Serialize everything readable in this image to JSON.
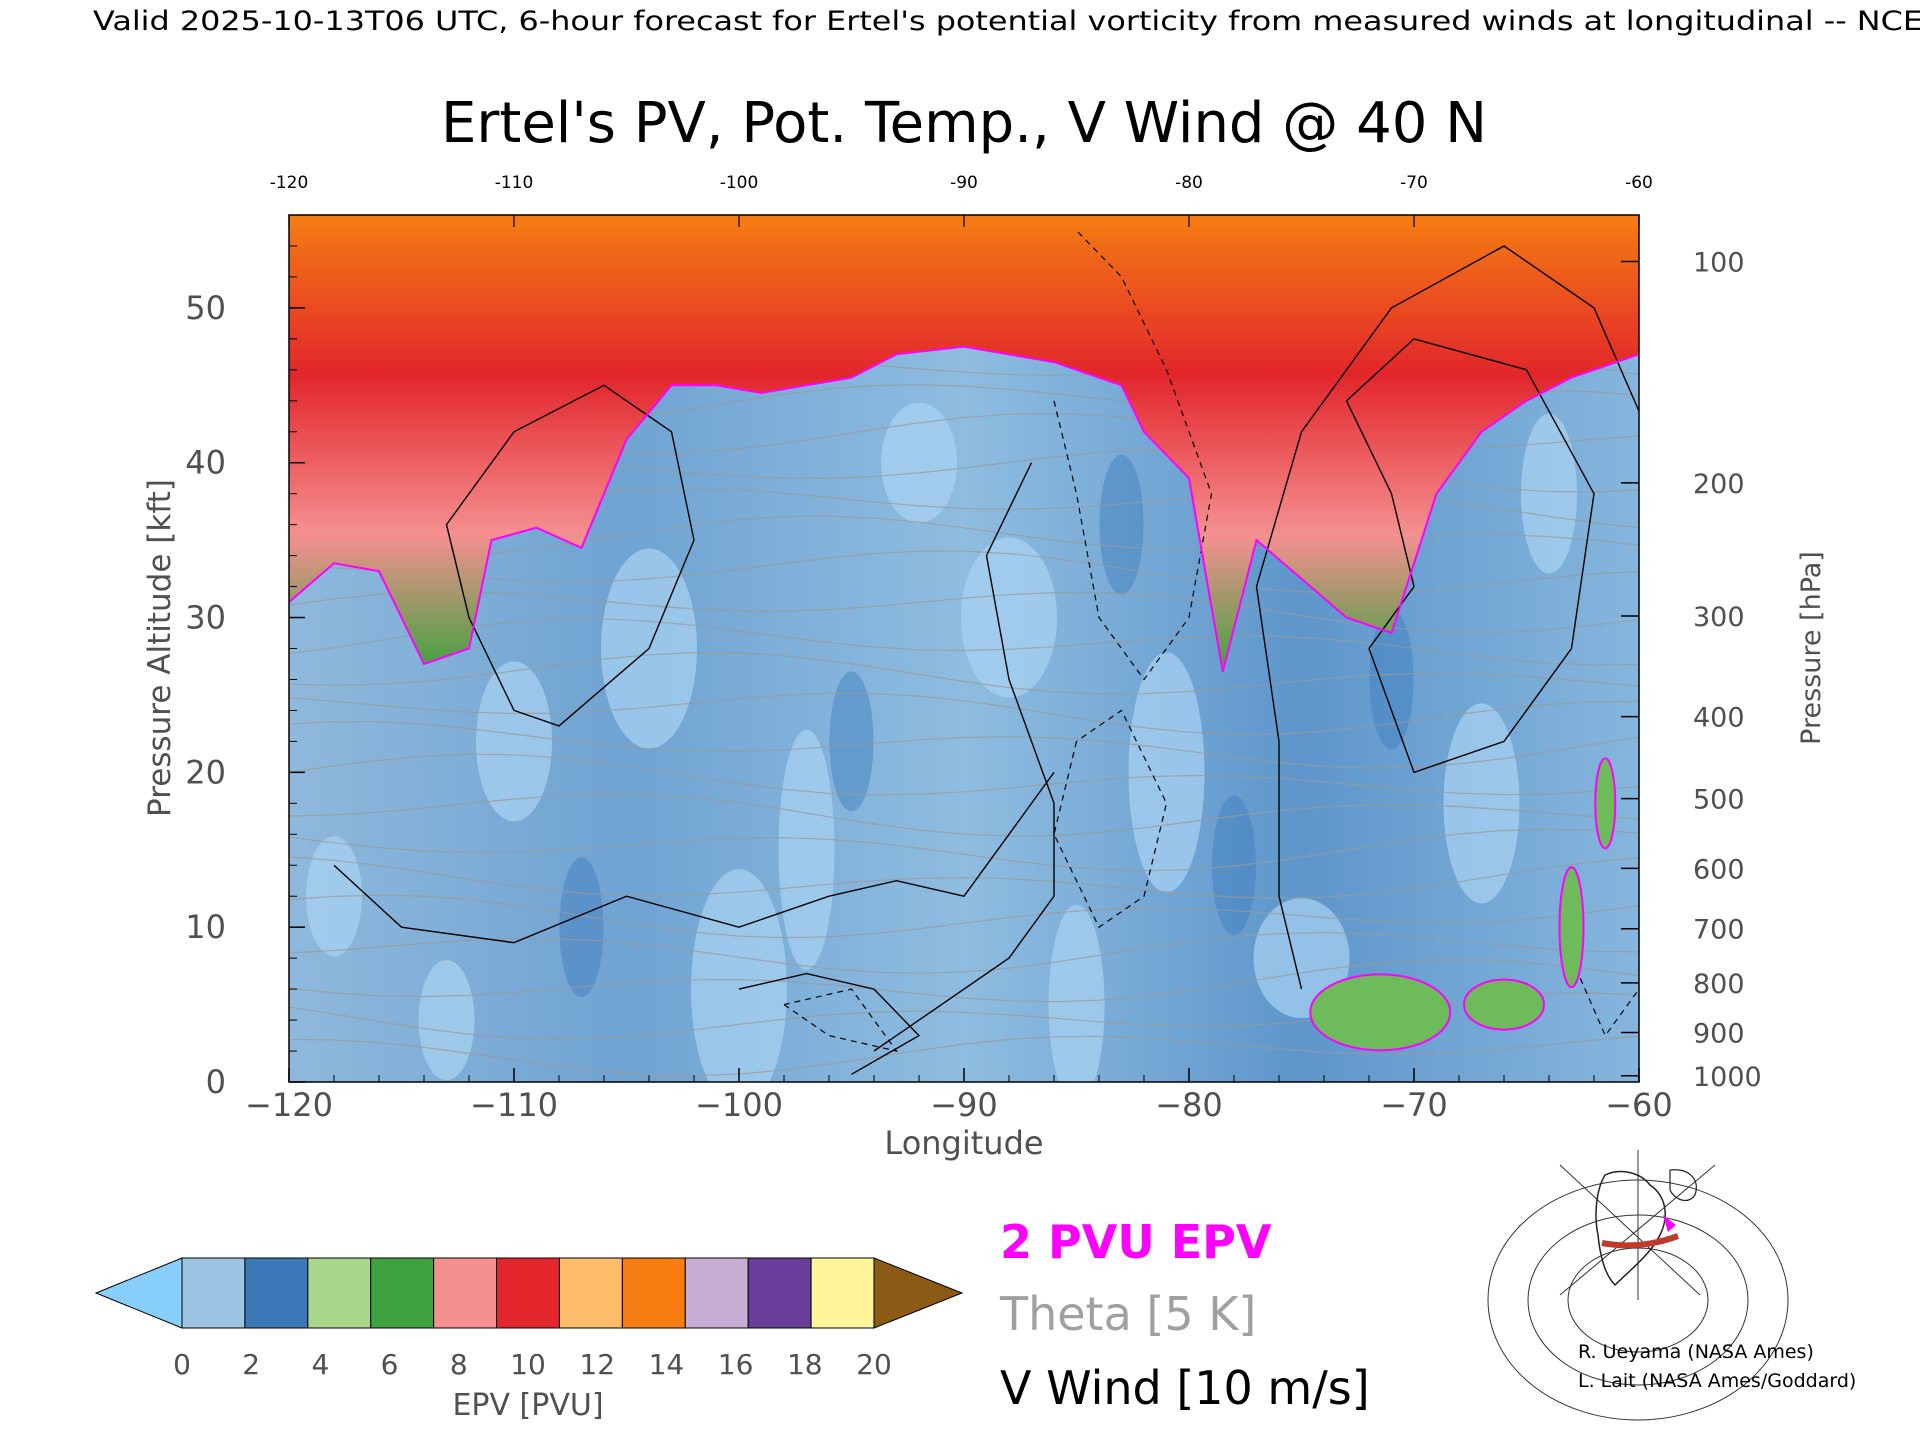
{
  "header": {
    "valid_text": "Valid 2025-10-13T06 UTC, 6-hour forecast for Ertel's potential vorticity from measured winds at longitudinal -- NCE"
  },
  "chart_data": {
    "type": "heatmap",
    "title": "Ertel's PV, Pot. Temp., V Wind @ 40 N",
    "xlabel": "Longitude",
    "ylabel_left": "Pressure Altitude [kft]",
    "ylabel_right": "Pressure [hPa]",
    "xlim": [
      -120,
      -60
    ],
    "ylim_kft": [
      0,
      56
    ],
    "x_ticks": [
      -120,
      -110,
      -100,
      -90,
      -80,
      -70,
      -60
    ],
    "x_tick_labels": [
      "−120",
      "−110",
      "−100",
      "−90",
      "−80",
      "−70",
      "−60"
    ],
    "top_ticks": [
      "-120",
      "-110",
      "-100",
      "-90",
      "-80",
      "-70",
      "-60"
    ],
    "left_ticks": [
      0,
      10,
      20,
      30,
      40,
      50
    ],
    "left_tick_labels": [
      "0",
      "10",
      "20",
      "30",
      "40",
      "50"
    ],
    "right_ticks": [
      {
        "label": "100",
        "kft": 53.0
      },
      {
        "label": "200",
        "kft": 38.7
      },
      {
        "label": "300",
        "kft": 30.1
      },
      {
        "label": "400",
        "kft": 23.6
      },
      {
        "label": "500",
        "kft": 18.3
      },
      {
        "label": "600",
        "kft": 13.8
      },
      {
        "label": "700",
        "kft": 9.9
      },
      {
        "label": "800",
        "kft": 6.4
      },
      {
        "label": "900",
        "kft": 3.2
      },
      {
        "label": "1000",
        "kft": 0.4
      }
    ],
    "colorbar": {
      "label": "EPV [PVU]",
      "ticks": [
        "0",
        "2",
        "4",
        "6",
        "8",
        "10",
        "12",
        "14",
        "16",
        "18",
        "20"
      ],
      "colors": [
        "#9cc3e1",
        "#3a78b8",
        "#a8d68a",
        "#3ea23e",
        "#f59090",
        "#e2262b",
        "#fdbc6a",
        "#f57d12",
        "#c8aed6",
        "#6a3d9a",
        "#fff59a"
      ],
      "under_color": "#87cefa",
      "over_color": "#8b5a14"
    },
    "tropopause_2pvu_kft": [
      [
        -120,
        31.0
      ],
      [
        -118,
        33.5
      ],
      [
        -116,
        33.0
      ],
      [
        -114,
        27.0
      ],
      [
        -112,
        28.0
      ],
      [
        -111,
        35.0
      ],
      [
        -109,
        35.8
      ],
      [
        -107,
        34.5
      ],
      [
        -105,
        41.5
      ],
      [
        -103,
        45.0
      ],
      [
        -101,
        45.0
      ],
      [
        -99,
        44.5
      ],
      [
        -97,
        45.0
      ],
      [
        -95,
        45.5
      ],
      [
        -93,
        47.0
      ],
      [
        -90,
        47.5
      ],
      [
        -86,
        46.5
      ],
      [
        -83,
        45.0
      ],
      [
        -82,
        42.0
      ],
      [
        -80,
        39.0
      ],
      [
        -78.5,
        26.5
      ],
      [
        -77,
        35.0
      ],
      [
        -75,
        32.5
      ],
      [
        -73,
        30.0
      ],
      [
        -71,
        29.0
      ],
      [
        -69,
        38.0
      ],
      [
        -67,
        42.0
      ],
      [
        -65,
        44.0
      ],
      [
        -63,
        45.5
      ],
      [
        -60,
        47.0
      ]
    ],
    "legend": [
      {
        "label": "2 PVU EPV",
        "color": "#ff00ff"
      },
      {
        "label": "Theta [5 K]",
        "color": "#a0a0a0"
      },
      {
        "label": "V Wind [10 m/s]",
        "color": "#000000"
      }
    ],
    "credits": [
      "R. Ueyama (NASA Ames)",
      "L. Lait (NASA Ames/Goddard)"
    ]
  }
}
